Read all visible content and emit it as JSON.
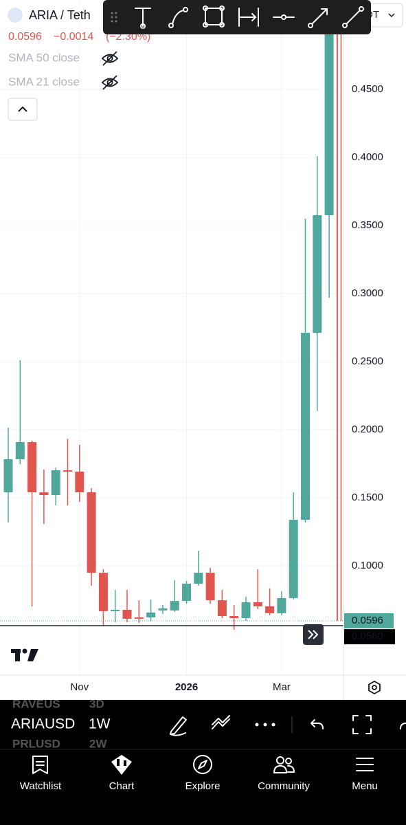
{
  "header": {
    "symbol": "ARIA / Teth",
    "quote_dropdown": "DT",
    "last_price": "0.0596",
    "change": "−0.0014",
    "change_percent": "(−2.30%)",
    "indicators": [
      "SMA 50 close",
      "SMA 21 close"
    ]
  },
  "chart_data": {
    "type": "candlestick",
    "categories": [
      null,
      null,
      null,
      null,
      null,
      null,
      "Nov",
      null,
      null,
      null,
      null,
      null,
      null,
      null,
      null,
      "2026",
      null,
      null,
      null,
      null,
      null,
      null,
      null,
      "Mar",
      null,
      null,
      null,
      null,
      null
    ],
    "open": [
      0.154,
      0.1783,
      0.1909,
      0.154,
      0.152,
      0.1702,
      0.1692,
      0.154,
      0.0949,
      0.0667,
      0.0677,
      0.0621,
      0.0621,
      0.0672,
      0.0672,
      0.0742,
      0.0869,
      0.0949,
      0.0747,
      0.0631,
      0.0616,
      0.0732,
      0.0702,
      0.0652,
      0.0763,
      0.1338,
      0.2712,
      0.3576,
      0.53
    ],
    "high": [
      0.2015,
      0.251,
      0.192,
      0.1707,
      0.1722,
      0.1934,
      0.1889,
      0.1571,
      0.0975,
      0.0823,
      0.0823,
      0.0747,
      0.0753,
      0.0712,
      0.0894,
      0.0889,
      0.1111,
      0.0985,
      0.0823,
      0.0712,
      0.0773,
      0.0975,
      0.0833,
      0.0813,
      0.154,
      0.3551,
      0.401,
      0.56,
      0.56
    ],
    "low": [
      0.1318,
      0.1747,
      0.0702,
      0.1308,
      0.1444,
      0.1444,
      0.147,
      0.0854,
      0.0561,
      0.0586,
      0.0586,
      0.0581,
      0.0591,
      0.0646,
      0.0662,
      0.0722,
      0.0854,
      0.0722,
      0.0616,
      0.053,
      0.0596,
      0.0682,
      0.0636,
      0.0636,
      0.0753,
      0.1318,
      0.2136,
      0.297,
      0.0596
    ],
    "close": [
      0.1783,
      0.1909,
      0.154,
      0.152,
      0.1702,
      0.1692,
      0.154,
      0.0949,
      0.0667,
      0.0677,
      0.0611,
      0.0611,
      0.0657,
      0.0687,
      0.0742,
      0.0869,
      0.0949,
      0.0747,
      0.0631,
      0.0616,
      0.0732,
      0.0702,
      0.0652,
      0.0763,
      0.1338,
      0.2712,
      0.3576,
      0.53,
      0.0596
    ],
    "up_color": "#4fa89b",
    "down_color": "#e0564f",
    "ylim": [
      0.0197,
      0.5157
    ],
    "yticks": [
      {
        "value": 0.1,
        "label": "0.1000"
      },
      {
        "value": 0.15,
        "label": "0.1500"
      },
      {
        "value": 0.2,
        "label": "0.2000"
      },
      {
        "value": 0.25,
        "label": "0.2500"
      },
      {
        "value": 0.3,
        "label": "0.3000"
      },
      {
        "value": 0.35,
        "label": "0.3500"
      },
      {
        "value": 0.4,
        "label": "0.4000"
      },
      {
        "value": 0.45,
        "label": "0.4500"
      }
    ],
    "grid": true,
    "last_price": 0.0596,
    "price_line": {
      "value": 0.056,
      "label": "0.0560"
    }
  },
  "symbol_bar": {
    "watchlist": [
      {
        "symbol": "RAVEUS",
        "interval": "3D"
      },
      {
        "symbol": "ARIAUSD",
        "interval": "1W"
      },
      {
        "symbol": "PRLUSD",
        "interval": "2W"
      }
    ]
  },
  "tabs": [
    "Watchlist",
    "Chart",
    "Explore",
    "Community",
    "Menu"
  ]
}
